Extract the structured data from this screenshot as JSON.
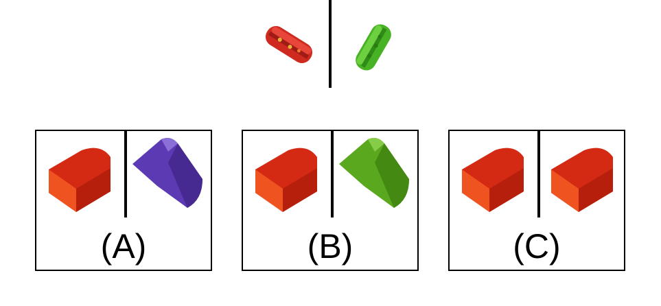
{
  "colors": {
    "red": "#d42a14",
    "red_dark": "#b71f0d",
    "red_side": "#ef5420",
    "purple": "#5b3ab3",
    "purple_dark": "#462a92",
    "green": "#5aa81e",
    "green_dark": "#448a12",
    "sandwich_red": "#cf2a20",
    "sandwich_green": "#48b225"
  },
  "prompt": {
    "left_object": "red-sandwich-icon",
    "right_object": "green-sandwich-icon"
  },
  "options": [
    {
      "label": "(A)",
      "left_shape": "red-half-cylinder-icon",
      "right_shape": "purple-half-cylinder-icon"
    },
    {
      "label": "(B)",
      "left_shape": "red-half-cylinder-icon",
      "right_shape": "green-half-cylinder-icon"
    },
    {
      "label": "(C)",
      "left_shape": "red-half-cylinder-icon",
      "right_shape": "red-half-cylinder-icon"
    }
  ]
}
